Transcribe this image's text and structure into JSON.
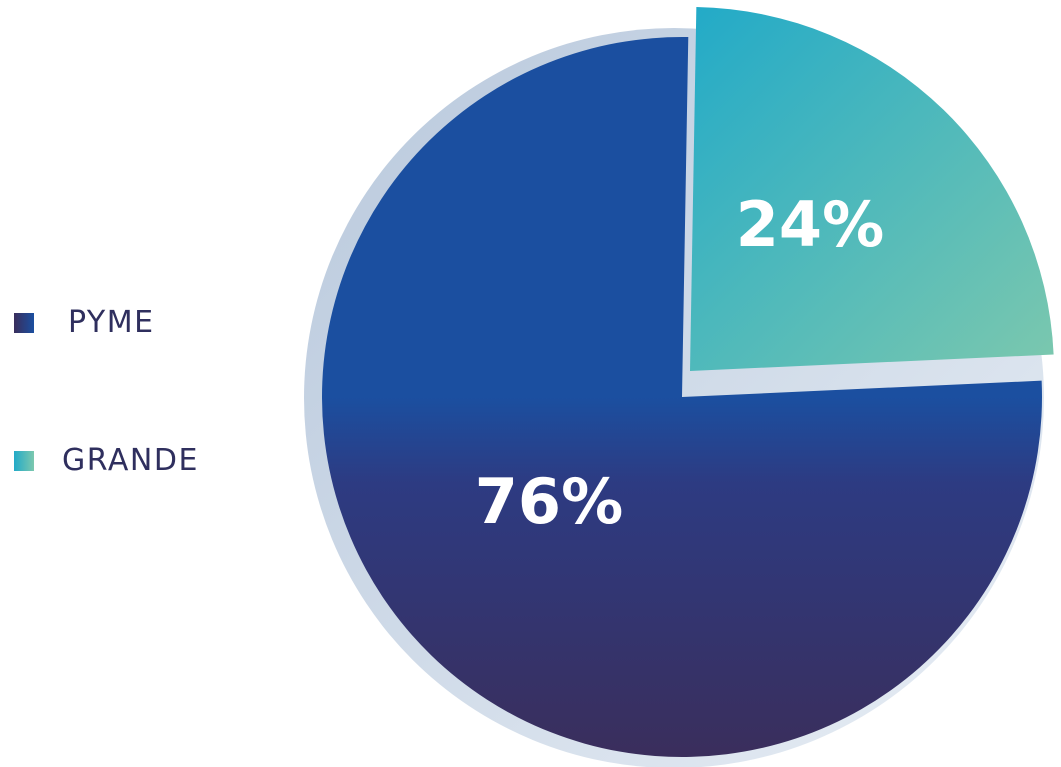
{
  "chart_data": {
    "type": "pie",
    "categories": [
      "PYME",
      "GRANDE"
    ],
    "values": [
      76,
      24
    ],
    "data_labels": [
      "76%",
      "24%"
    ],
    "start_angle_deg": 1,
    "colors": {
      "PYME": {
        "gradient": [
          "#1b4fa0",
          "#3a2e5c"
        ],
        "swatch": [
          "#1b4fa0",
          "#3a2e5c"
        ]
      },
      "GRANDE": {
        "gradient": [
          "#22aac8",
          "#7cc8ae"
        ],
        "swatch": [
          "#22aac8",
          "#7cc8ae"
        ]
      }
    },
    "legend_position": "left",
    "grid": false
  }
}
